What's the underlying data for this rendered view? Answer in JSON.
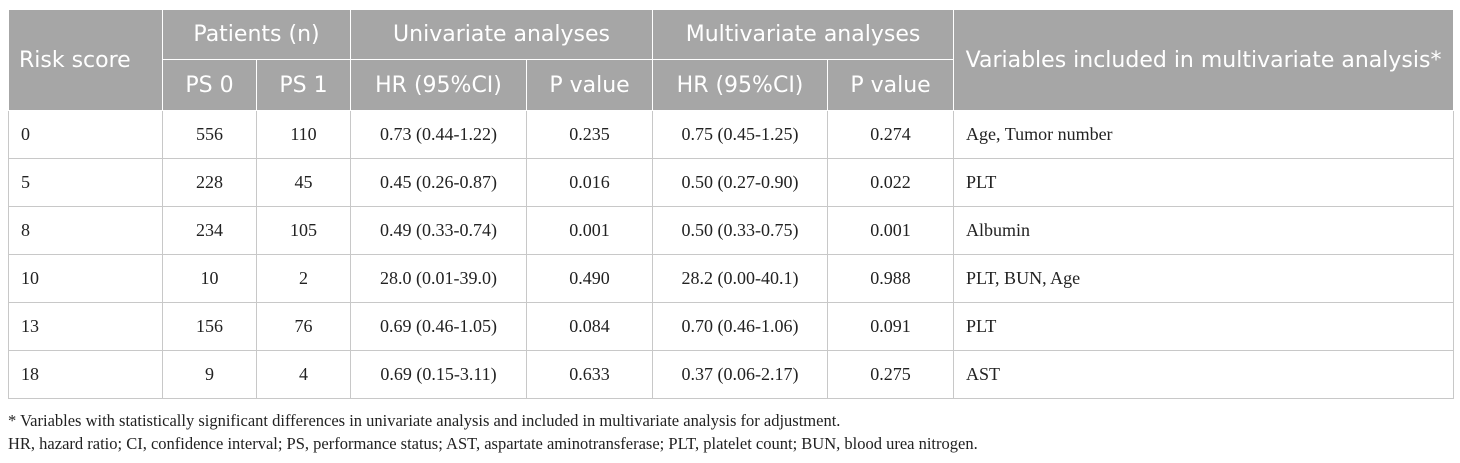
{
  "header": {
    "risk_score": "Risk score",
    "patients": "Patients (n)",
    "univariate": "Univariate analyses",
    "multivariate": "Multivariate analyses",
    "variables": "Variables included in multivariate analysis*",
    "ps0": "PS 0",
    "ps1": "PS 1",
    "uni_hr": "HR (95%CI)",
    "uni_p": "P value",
    "multi_hr": "HR (95%CI)",
    "multi_p": "P value"
  },
  "rows": [
    {
      "risk": "0",
      "ps0": "556",
      "ps1": "110",
      "uni_hr": "0.73 (0.44-1.22)",
      "uni_p": "0.235",
      "multi_hr": "0.75 (0.45-1.25)",
      "multi_p": "0.274",
      "vars": "Age, Tumor number"
    },
    {
      "risk": "5",
      "ps0": "228",
      "ps1": "45",
      "uni_hr": "0.45 (0.26-0.87)",
      "uni_p": "0.016",
      "multi_hr": "0.50 (0.27-0.90)",
      "multi_p": "0.022",
      "vars": "PLT"
    },
    {
      "risk": "8",
      "ps0": "234",
      "ps1": "105",
      "uni_hr": "0.49 (0.33-0.74)",
      "uni_p": "0.001",
      "multi_hr": "0.50 (0.33-0.75)",
      "multi_p": "0.001",
      "vars": "Albumin"
    },
    {
      "risk": "10",
      "ps0": "10",
      "ps1": "2",
      "uni_hr": "28.0 (0.01-39.0)",
      "uni_p": "0.490",
      "multi_hr": "28.2 (0.00-40.1)",
      "multi_p": "0.988",
      "vars": "PLT, BUN, Age"
    },
    {
      "risk": "13",
      "ps0": "156",
      "ps1": "76",
      "uni_hr": "0.69 (0.46-1.05)",
      "uni_p": "0.084",
      "multi_hr": "0.70 (0.46-1.06)",
      "multi_p": "0.091",
      "vars": "PLT"
    },
    {
      "risk": "18",
      "ps0": "9",
      "ps1": "4",
      "uni_hr": "0.69 (0.15-3.11)",
      "uni_p": "0.633",
      "multi_hr": "0.37 (0.06-2.17)",
      "multi_p": "0.275",
      "vars": "AST"
    }
  ],
  "notes": {
    "footnote": "* Variables with statistically significant differences in univariate analysis and included in multivariate analysis for adjustment.",
    "abbreviations": "HR, hazard ratio; CI, confidence interval; PS, performance status; AST, aspartate aminotransferase; PLT, platelet count; BUN, blood urea nitrogen."
  },
  "colors": {
    "header_bg": "#a6a6a6",
    "header_text": "#ffffff",
    "grid": "#c8c8c8"
  }
}
